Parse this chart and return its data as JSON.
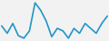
{
  "values": [
    11.0,
    9.5,
    11.5,
    9.0,
    8.5,
    10.0,
    15.7,
    14.2,
    12.0,
    8.8,
    10.5,
    10.0,
    8.5,
    10.5,
    9.5,
    11.5,
    10.5,
    9.5,
    11.5,
    13.0
  ],
  "line_color": "#2196c8",
  "background_color": "#f2f2f2",
  "linewidth": 1.2
}
